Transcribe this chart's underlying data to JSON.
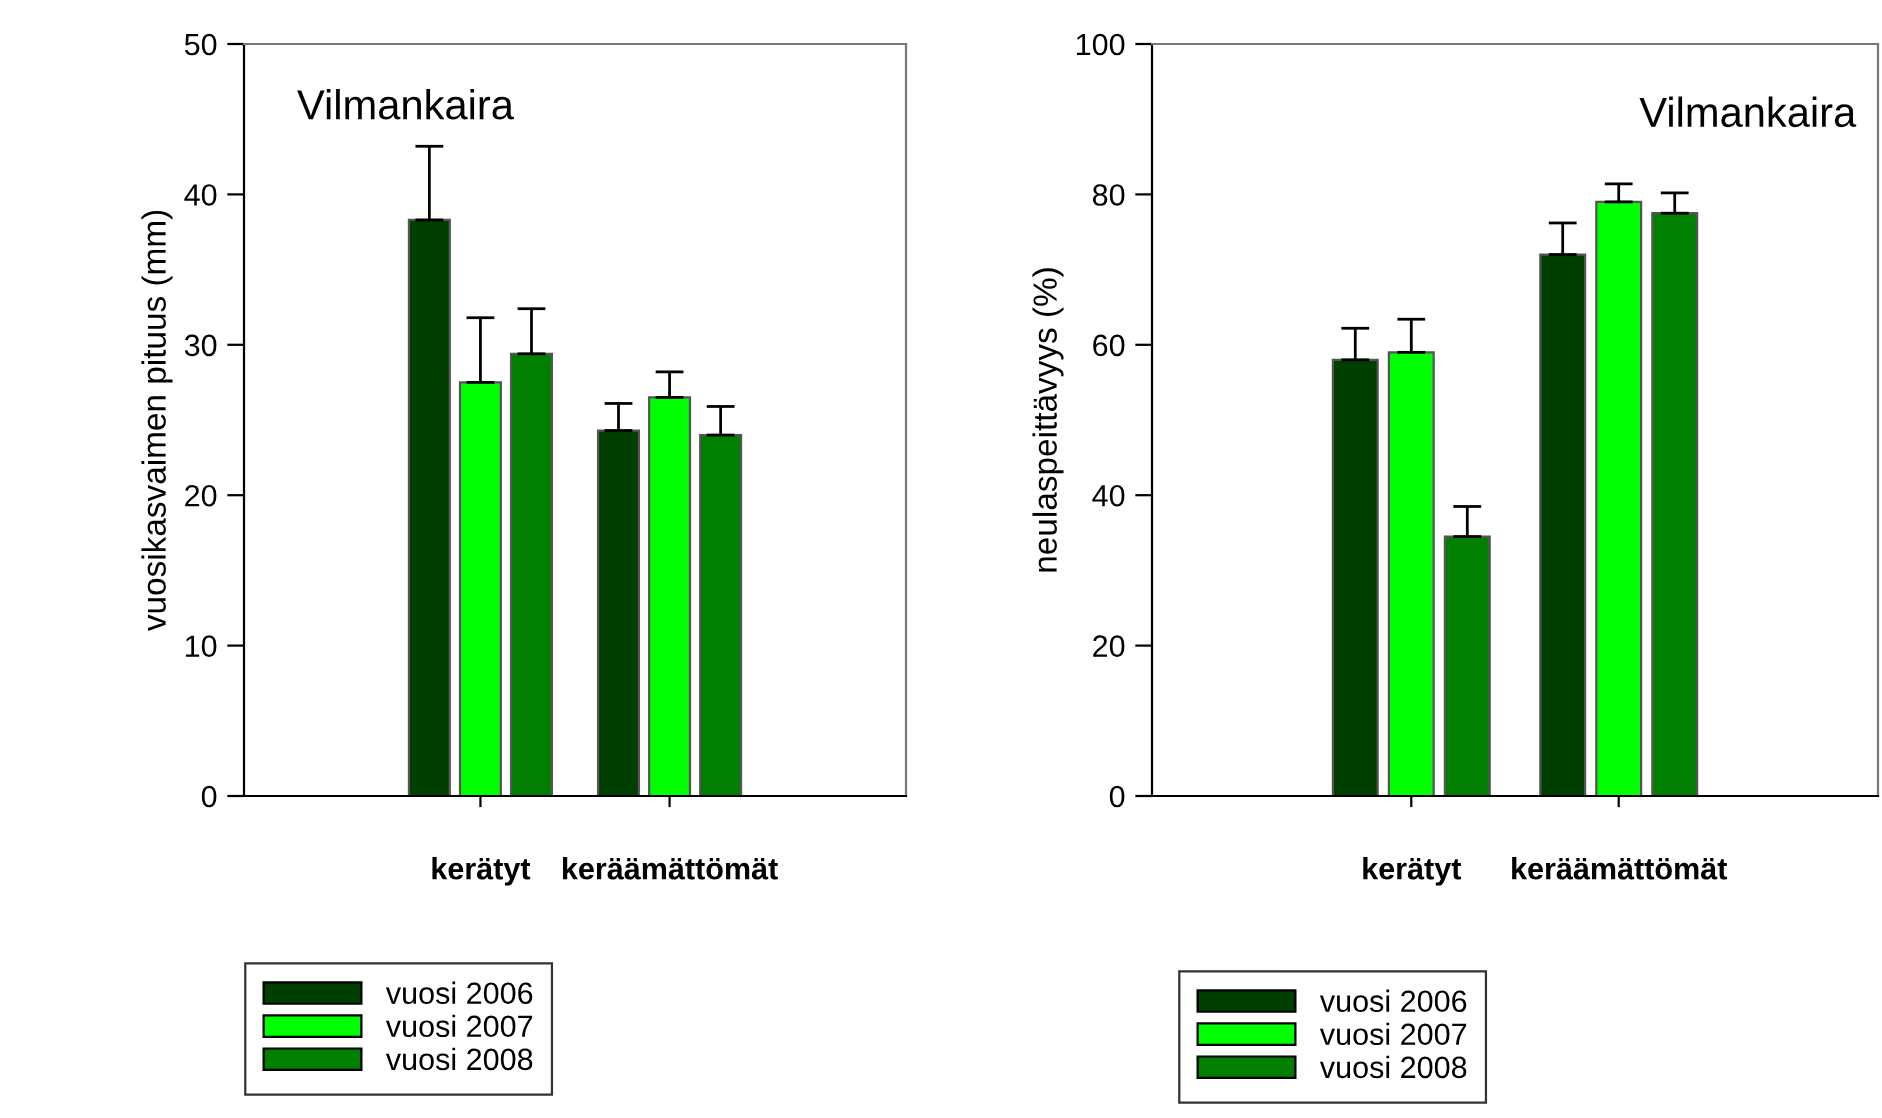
{
  "chart_data": [
    {
      "type": "bar",
      "ylabel": "vuosikasvaimen pituus (mm)",
      "categories": [
        "kerätyt",
        "keräämättömät"
      ],
      "ylim": [
        0,
        50
      ],
      "yticks": [
        0,
        10,
        20,
        30,
        40,
        50
      ],
      "legend": "bottom left",
      "grid": false,
      "annotations": [
        "Vilmankaira"
      ],
      "series": [
        {
          "name": "vuosi 2006",
          "color": "#003f00",
          "values": [
            38.3,
            24.3
          ],
          "errors": [
            [
              38.3,
              43.2
            ],
            [
              24.3,
              26.1
            ]
          ]
        },
        {
          "name": "vuosi 2007",
          "color": "#00ff00",
          "values": [
            27.5,
            26.5
          ],
          "errors": [
            [
              27.5,
              31.8
            ],
            [
              26.5,
              28.2
            ]
          ]
        },
        {
          "name": "vuosi 2008",
          "color": "#007f00",
          "values": [
            29.4,
            24.0
          ],
          "errors": [
            [
              29.4,
              32.4
            ],
            [
              24.0,
              25.9
            ]
          ]
        }
      ]
    },
    {
      "type": "bar",
      "ylabel": "neulaspeittävyys (%)",
      "categories": [
        "kerätyt",
        "keräämättömät"
      ],
      "ylim": [
        0,
        100
      ],
      "yticks": [
        0,
        20,
        40,
        60,
        80,
        100
      ],
      "legend": "bottom left",
      "grid": false,
      "annotations": [
        "Vilmankaira"
      ],
      "series": [
        {
          "name": "vuosi 2006",
          "color": "#003f00",
          "values": [
            58,
            72
          ],
          "errors": [
            [
              58,
              62.2
            ],
            [
              72,
              76.2
            ]
          ]
        },
        {
          "name": "vuosi 2007",
          "color": "#00ff00",
          "values": [
            59,
            79
          ],
          "errors": [
            [
              59,
              63.4
            ],
            [
              79,
              81.4
            ]
          ]
        },
        {
          "name": "vuosi 2008",
          "color": "#007f00",
          "values": [
            34.5,
            77.5
          ],
          "errors": [
            [
              34.5,
              38.5
            ],
            [
              77.5,
              80.2
            ]
          ]
        }
      ]
    }
  ]
}
